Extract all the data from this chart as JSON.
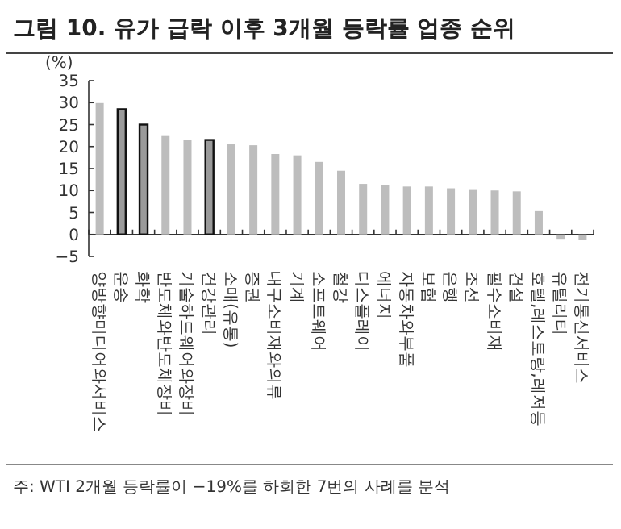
{
  "chart_data": {
    "type": "bar",
    "title": "그림 10. 유가 급락 이후 3개월 등락률 업종 순위",
    "ylabel": "(%)",
    "categories": [
      "양방향미디어와서비스",
      "운송",
      "화학",
      "반도체와반도체장비",
      "기술하드웨어와장비",
      "건강관리",
      "소매(유통)",
      "증권",
      "내구소비재와의류",
      "기계",
      "소프트웨어",
      "철강",
      "디스플레이",
      "에너지",
      "자동차와부품",
      "보험",
      "은행",
      "조선",
      "필수소비재",
      "건설",
      "호텔,레스토랑,레저등",
      "유틸리티",
      "전기통신서비스"
    ],
    "values": [
      29.9,
      28.5,
      25,
      22.4,
      21.5,
      21.5,
      20.5,
      20.3,
      18.3,
      18,
      16.5,
      14.5,
      11.5,
      11.2,
      10.9,
      10.9,
      10.5,
      10.3,
      10,
      9.8,
      5.3,
      -1,
      -1.3
    ],
    "colors": [
      "#bdbdbd",
      "#9a9a9a",
      "#9a9a9a",
      "#bdbdbd",
      "#bdbdbd",
      "#9a9a9a",
      "#bdbdbd",
      "#bdbdbd",
      "#bdbdbd",
      "#bdbdbd",
      "#bdbdbd",
      "#bdbdbd",
      "#bdbdbd",
      "#bdbdbd",
      "#bdbdbd",
      "#bdbdbd",
      "#bdbdbd",
      "#bdbdbd",
      "#bdbdbd",
      "#bdbdbd",
      "#bdbdbd",
      "#bdbdbd",
      "#bdbdbd"
    ],
    "ylim": [
      -5,
      35
    ],
    "yticks": [
      -5,
      0,
      5,
      10,
      15,
      20,
      25,
      30,
      35
    ],
    "grid": false,
    "annotations": [
      "주: WTI 2개월 등락률이 −19%를 하회한 7번의 사례를 분석"
    ]
  }
}
